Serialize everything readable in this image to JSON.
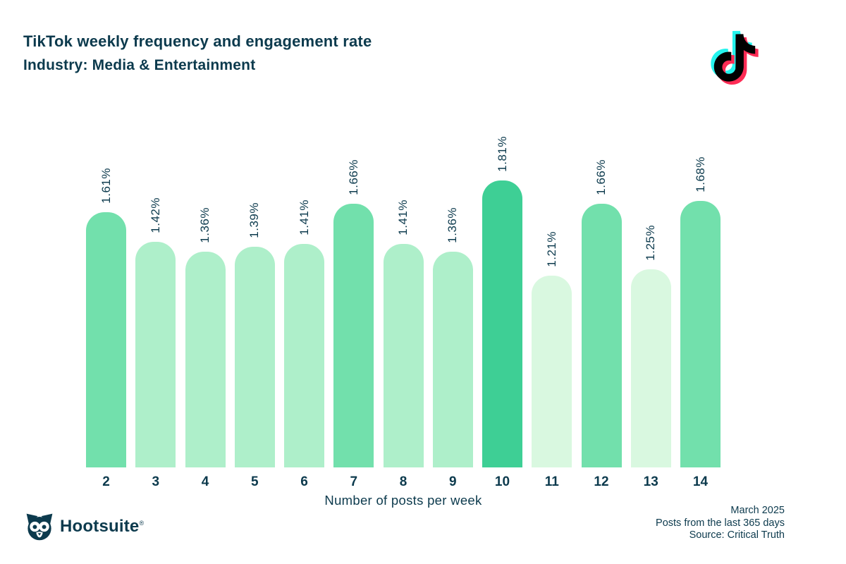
{
  "header": {
    "title": "TikTok weekly frequency and engagement rate",
    "subtitle": "Industry: Media & Entertainment"
  },
  "chart_data": {
    "type": "bar",
    "title": "TikTok weekly frequency and engagement rate",
    "subtitle": "Industry: Media & Entertainment",
    "xlabel": "Number of posts per week",
    "ylabel": "",
    "ylim": [
      0,
      2.0
    ],
    "grid": false,
    "legend": "none",
    "categories": [
      "2",
      "3",
      "4",
      "5",
      "6",
      "7",
      "8",
      "9",
      "10",
      "11",
      "12",
      "13",
      "14"
    ],
    "values": [
      1.61,
      1.42,
      1.36,
      1.39,
      1.41,
      1.66,
      1.41,
      1.36,
      1.81,
      1.21,
      1.66,
      1.25,
      1.68
    ],
    "value_labels": [
      "1.61%",
      "1.42%",
      "1.36%",
      "1.39%",
      "1.41%",
      "1.66%",
      "1.41%",
      "1.36%",
      "1.81%",
      "1.21%",
      "1.66%",
      "1.25%",
      "1.68%"
    ],
    "bar_colors": [
      "#72e0ac",
      "#aeefca",
      "#aeefca",
      "#aeefca",
      "#aeefca",
      "#72e0ac",
      "#aeefca",
      "#aeefca",
      "#3ecf95",
      "#d9f8e0",
      "#72e0ac",
      "#d9f8e0",
      "#72e0ac"
    ],
    "textured": [
      false,
      false,
      false,
      true,
      false,
      false,
      false,
      false,
      false,
      true,
      false,
      true,
      false
    ]
  },
  "footer": {
    "brand": "Hootsuite",
    "registered_mark": "®",
    "date": "March 2025",
    "range": "Posts from the last 365 days",
    "source": "Source: Critical Truth"
  },
  "colors": {
    "text": "#0c3a4d",
    "bar_dark": "#3ecf95",
    "bar_medium": "#72e0ac",
    "bar_light": "#aeefca",
    "bar_very_light": "#d9f8e0",
    "tiktok_cyan": "#25f4ee",
    "tiktok_red": "#fe2c55",
    "tiktok_black": "#010101"
  }
}
